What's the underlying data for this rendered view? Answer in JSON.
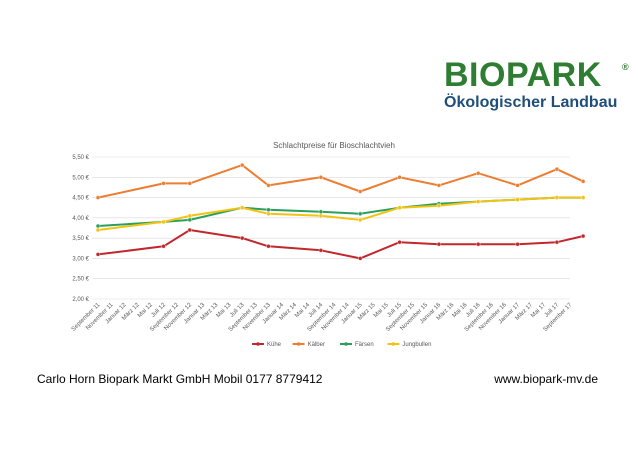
{
  "logo": {
    "main": "BIOPARK",
    "reg": "®",
    "sub": "Ökologischer Landbau",
    "colors": {
      "main": "#2e7d32",
      "sub": "#1f4e79"
    }
  },
  "footer": {
    "left": "Carlo Horn Biopark Markt GmbH Mobil 0177 8779412",
    "right": "www.biopark-mv.de"
  },
  "chart_data": {
    "type": "line",
    "title": "Schlachtpreise für Bioschlachtvieh",
    "xlabel": "",
    "ylabel": "",
    "ylim": [
      2.0,
      5.5
    ],
    "grid": true,
    "legend_position": "bottom",
    "y_ticks": [
      "2,00 €",
      "2,50 €",
      "3,00 €",
      "3,50 €",
      "4,00 €",
      "4,50 €",
      "5,00 €",
      "5,50 €"
    ],
    "y_tick_values": [
      2.0,
      2.5,
      3.0,
      3.5,
      4.0,
      4.5,
      5.0,
      5.5
    ],
    "categories": [
      "September 11",
      "November 11",
      "Januar 12",
      "März 12",
      "Mai 12",
      "Juli 12",
      "September 12",
      "November 12",
      "Januar 13",
      "März 13",
      "Mai 13",
      "Juli 13",
      "September 13",
      "November 13",
      "Januar 14",
      "März 14",
      "Mai 14",
      "Juli 14",
      "September 14",
      "November 14",
      "Januar 15",
      "März 15",
      "Mai 15",
      "Juli 15",
      "September 15",
      "November 15",
      "Januar 16",
      "März 16",
      "Mai 16",
      "Juli 16",
      "September 16",
      "November 16",
      "Januar 17",
      "März 17",
      "Mai 17",
      "Juli 17",
      "September 17"
    ],
    "series": [
      {
        "name": "Kühe",
        "color": "#c0282d",
        "points": [
          [
            0,
            3.1
          ],
          [
            5,
            3.3
          ],
          [
            7,
            3.7
          ],
          [
            11,
            3.5
          ],
          [
            13,
            3.3
          ],
          [
            17,
            3.2
          ],
          [
            20,
            3.0
          ],
          [
            23,
            3.4
          ],
          [
            26,
            3.35
          ],
          [
            29,
            3.35
          ],
          [
            32,
            3.35
          ],
          [
            35,
            3.4
          ],
          [
            37,
            3.55
          ]
        ]
      },
      {
        "name": "Kälber",
        "color": "#ed7d31",
        "points": [
          [
            0,
            4.5
          ],
          [
            5,
            4.85
          ],
          [
            7,
            4.85
          ],
          [
            11,
            5.3
          ],
          [
            13,
            4.8
          ],
          [
            17,
            5.0
          ],
          [
            20,
            4.65
          ],
          [
            23,
            5.0
          ],
          [
            26,
            4.8
          ],
          [
            29,
            5.1
          ],
          [
            32,
            4.8
          ],
          [
            35,
            5.2
          ],
          [
            37,
            4.9
          ]
        ]
      },
      {
        "name": "Färsen",
        "color": "#2aa05a",
        "points": [
          [
            0,
            3.8
          ],
          [
            5,
            3.9
          ],
          [
            7,
            3.95
          ],
          [
            11,
            4.25
          ],
          [
            13,
            4.2
          ],
          [
            17,
            4.15
          ],
          [
            20,
            4.1
          ],
          [
            23,
            4.25
          ],
          [
            26,
            4.35
          ],
          [
            29,
            4.4
          ],
          [
            32,
            4.45
          ],
          [
            35,
            4.5
          ],
          [
            37,
            4.5
          ]
        ]
      },
      {
        "name": "Jungbullen",
        "color": "#f2c314",
        "points": [
          [
            0,
            3.7
          ],
          [
            5,
            3.9
          ],
          [
            7,
            4.05
          ],
          [
            11,
            4.25
          ],
          [
            13,
            4.1
          ],
          [
            17,
            4.05
          ],
          [
            20,
            3.95
          ],
          [
            23,
            4.25
          ],
          [
            26,
            4.3
          ],
          [
            29,
            4.4
          ],
          [
            32,
            4.45
          ],
          [
            35,
            4.5
          ],
          [
            37,
            4.5
          ]
        ]
      }
    ]
  }
}
